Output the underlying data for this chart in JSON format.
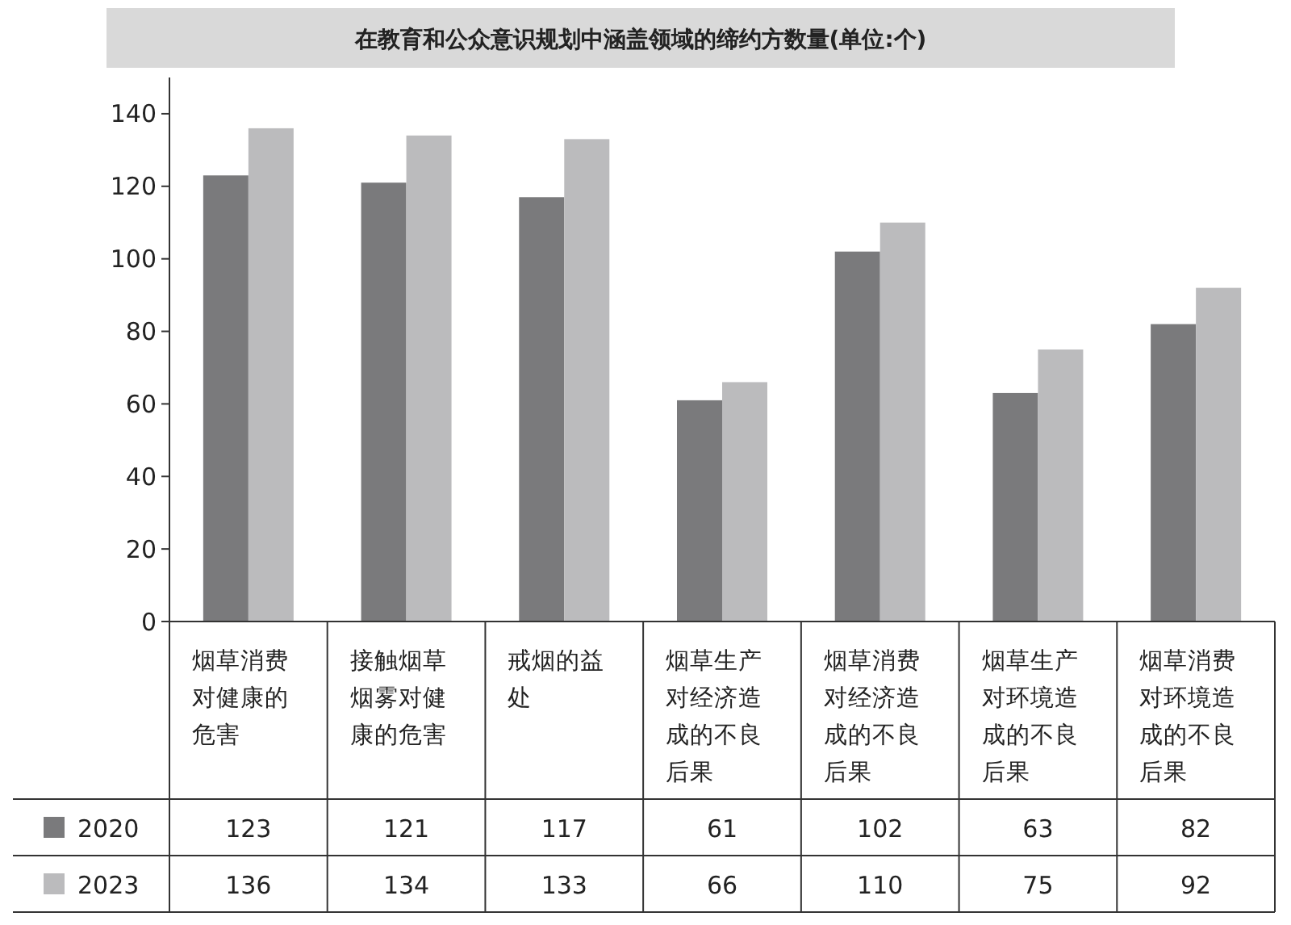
{
  "chart_data": {
    "type": "bar",
    "title": "在教育和公众意识规划中涵盖领域的缔约方数量(单位:个)",
    "categories": [
      "烟草消费对健康的危害",
      "接触烟草烟雾对健康的危害",
      "戒烟的益处",
      "烟草生产对经济造成的不良后果",
      "烟草消费对经济造成的不良后果",
      "烟草生产对环境造成的不良后果",
      "烟草消费对环境造成的不良后果"
    ],
    "series": [
      {
        "name": "2020",
        "color": "#7a7a7c",
        "values": [
          123,
          121,
          117,
          61,
          102,
          63,
          82
        ]
      },
      {
        "name": "2023",
        "color": "#bbbbbd",
        "values": [
          136,
          134,
          133,
          66,
          110,
          75,
          92
        ]
      }
    ],
    "ylim": [
      0,
      150
    ],
    "yticks": [
      0,
      20,
      40,
      60,
      80,
      100,
      120,
      140
    ],
    "grid": false,
    "legend": "bottom left",
    "data_labels": true
  }
}
